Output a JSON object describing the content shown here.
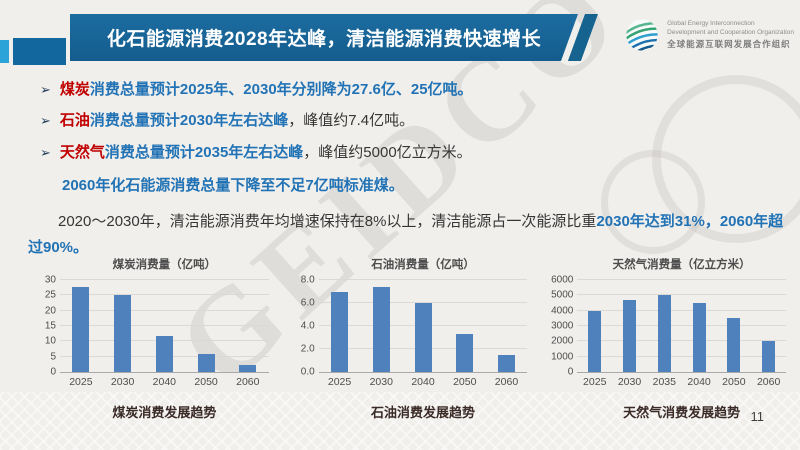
{
  "slide": {
    "title": "化石能源消费2028年达峰，清洁能源消费快速增长",
    "page_number": "11",
    "watermark": "GEIDCO"
  },
  "logo": {
    "name_en_line1": "Global Energy Interconnection",
    "name_en_line2": "Development and Cooperation Organization",
    "name_cn": "全球能源互联网发展合作组织"
  },
  "bullets": [
    {
      "marker": "➢",
      "segments": [
        {
          "text": "煤炭",
          "color": "red"
        },
        {
          "text": "消费总量预计2025年、2030年分别降为27.6亿、25亿吨。",
          "color": "blue"
        }
      ]
    },
    {
      "marker": "➢",
      "segments": [
        {
          "text": "石油",
          "color": "red"
        },
        {
          "text": "消费总量预计2030年左右达峰",
          "color": "blue"
        },
        {
          "text": "，峰值约7.4亿吨。",
          "color": "black"
        }
      ]
    },
    {
      "marker": "➢",
      "segments": [
        {
          "text": "天然气",
          "color": "red"
        },
        {
          "text": "消费总量预计2035年左右达峰",
          "color": "blue"
        },
        {
          "text": "，峰值约5000亿立方米。",
          "color": "black"
        }
      ]
    }
  ],
  "subline": "2060年化石能源消费总量下降至不足7亿吨标准煤。",
  "paragraph": {
    "segments": [
      {
        "text": "2020～2030年，清洁能源消费年均增速保持在8%以上，清洁能源占一次能源比重",
        "color": "black"
      },
      {
        "text": "2030年达到31%，2060年超过90%。",
        "color": "blue"
      }
    ]
  },
  "colors": {
    "banner_blue": "#17638f",
    "accent_light_blue": "#2ba3d8",
    "text_blue": "#2273b5",
    "text_red": "#c00000",
    "text_dark": "#363636",
    "bar": "#4f81bd"
  },
  "chart_data": [
    {
      "type": "bar",
      "title": "煤炭消费量（亿吨）",
      "caption": "煤炭消费发展趋势",
      "categories": [
        "2025",
        "2030",
        "2040",
        "2050",
        "2060"
      ],
      "values": [
        27.6,
        25,
        11.8,
        5.8,
        2.3
      ],
      "ylim": [
        0,
        30
      ],
      "yticks": [
        "0",
        "5",
        "10",
        "15",
        "20",
        "25",
        "30"
      ],
      "grid": true,
      "legend": false
    },
    {
      "type": "bar",
      "title": "石油消费量（亿吨）",
      "caption": "石油消费发展趋势",
      "categories": [
        "2025",
        "2030",
        "2040",
        "2050",
        "2060"
      ],
      "values": [
        7.0,
        7.4,
        6.0,
        3.3,
        1.5
      ],
      "ylim": [
        0,
        8
      ],
      "yticks": [
        "0.0",
        "2.0",
        "4.0",
        "6.0",
        "8.0"
      ],
      "grid": true,
      "legend": false
    },
    {
      "type": "bar",
      "title": "天然气消费量（亿立方米）",
      "caption": "天然气消费发展趋势",
      "categories": [
        "2025",
        "2030",
        "2035",
        "2040",
        "2050",
        "2060"
      ],
      "values": [
        4000,
        4700,
        5000,
        4500,
        3500,
        2000
      ],
      "ylim": [
        0,
        6000
      ],
      "yticks": [
        "0",
        "1000",
        "2000",
        "3000",
        "4000",
        "5000",
        "6000"
      ],
      "grid": true,
      "legend": false
    }
  ]
}
